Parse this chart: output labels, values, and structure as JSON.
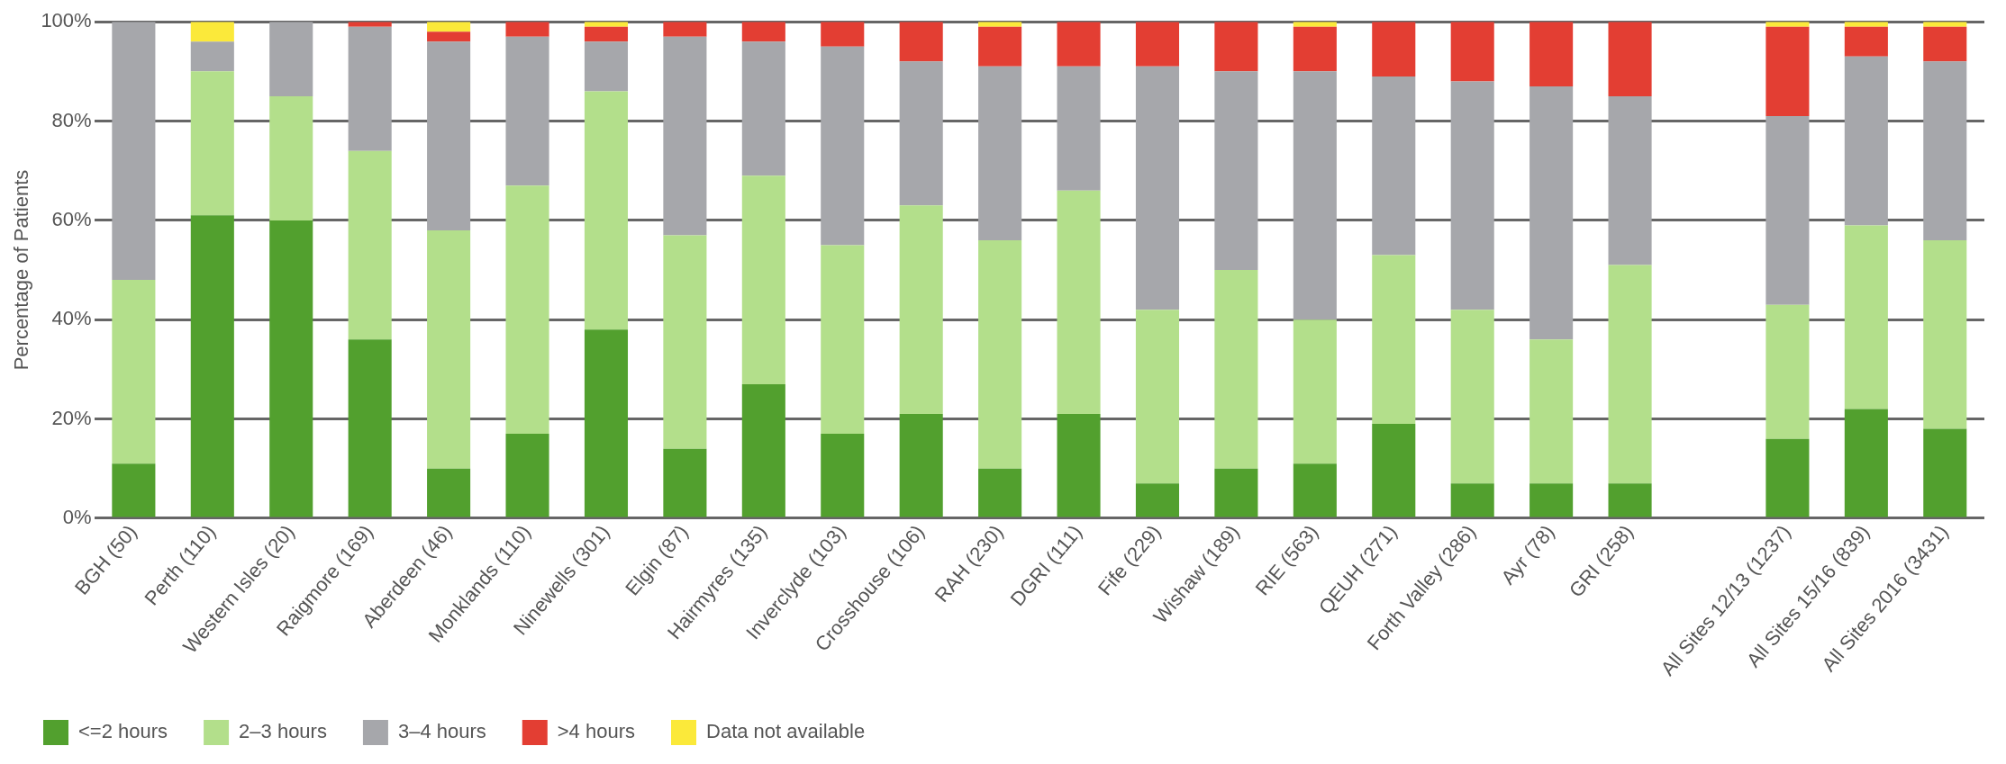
{
  "chart_data": {
    "type": "bar",
    "stacked": true,
    "ylabel": "Percentage of Patients",
    "categories": [
      "BGH (50)",
      "Perth (110)",
      "Western Isles (20)",
      "Raigmore (169)",
      "Aberdeen (46)",
      "Monklands (110)",
      "Ninewells (301)",
      "Elgin (87)",
      "Hairmyres (135)",
      "Inverclyde (103)",
      "Crosshouse (106)",
      "RAH (230)",
      "DGRI (111)",
      "Fife (229)",
      "Wishaw (189)",
      "RIE (563)",
      "QEUH (271)",
      "Forth Valley (286)",
      "Ayr (78)",
      "GRI (258)",
      null,
      "All Sites 12/13 (1237)",
      "All Sites 15/16 (839)",
      "All Sites 2016 (3431)"
    ],
    "series": [
      {
        "name": "<=2 hours",
        "color": "#52a02e",
        "values": [
          11,
          61,
          60,
          36,
          10,
          17,
          38,
          14,
          27,
          17,
          21,
          10,
          21,
          7,
          10,
          11,
          19,
          7,
          7,
          7,
          null,
          16,
          22,
          18
        ]
      },
      {
        "name": "2–3 hours",
        "color": "#b3df8b",
        "values": [
          37,
          29,
          25,
          38,
          48,
          50,
          48,
          43,
          42,
          38,
          42,
          46,
          45,
          35,
          40,
          29,
          34,
          35,
          29,
          44,
          null,
          27,
          37,
          38
        ]
      },
      {
        "name": "3–4 hours",
        "color": "#a6a7ab",
        "values": [
          52,
          6,
          15,
          25,
          38,
          30,
          10,
          40,
          27,
          40,
          29,
          35,
          25,
          49,
          40,
          50,
          36,
          46,
          51,
          34,
          null,
          38,
          34,
          36
        ]
      },
      {
        "name": ">4 hours",
        "color": "#e33e33",
        "values": [
          0,
          0,
          0,
          1,
          2,
          3,
          3,
          3,
          4,
          5,
          8,
          8,
          9,
          9,
          10,
          9,
          11,
          12,
          13,
          15,
          null,
          18,
          6,
          7
        ]
      },
      {
        "name": "Data not available",
        "color": "#fbe93a",
        "values": [
          0,
          4,
          0,
          0,
          2,
          0,
          1,
          0,
          0,
          0,
          0,
          1,
          0,
          0,
          0,
          1,
          0,
          0,
          0,
          0,
          null,
          1,
          1,
          1
        ]
      }
    ],
    "ylim": [
      0,
      100
    ],
    "yticks": [
      {
        "value": 0,
        "label": "0%"
      },
      {
        "value": 20,
        "label": "20%"
      },
      {
        "value": 40,
        "label": "40%"
      },
      {
        "value": 60,
        "label": "60%"
      },
      {
        "value": 80,
        "label": "80%"
      },
      {
        "value": 100,
        "label": "100%"
      }
    ],
    "grid": "y",
    "legend": "bottom left"
  }
}
